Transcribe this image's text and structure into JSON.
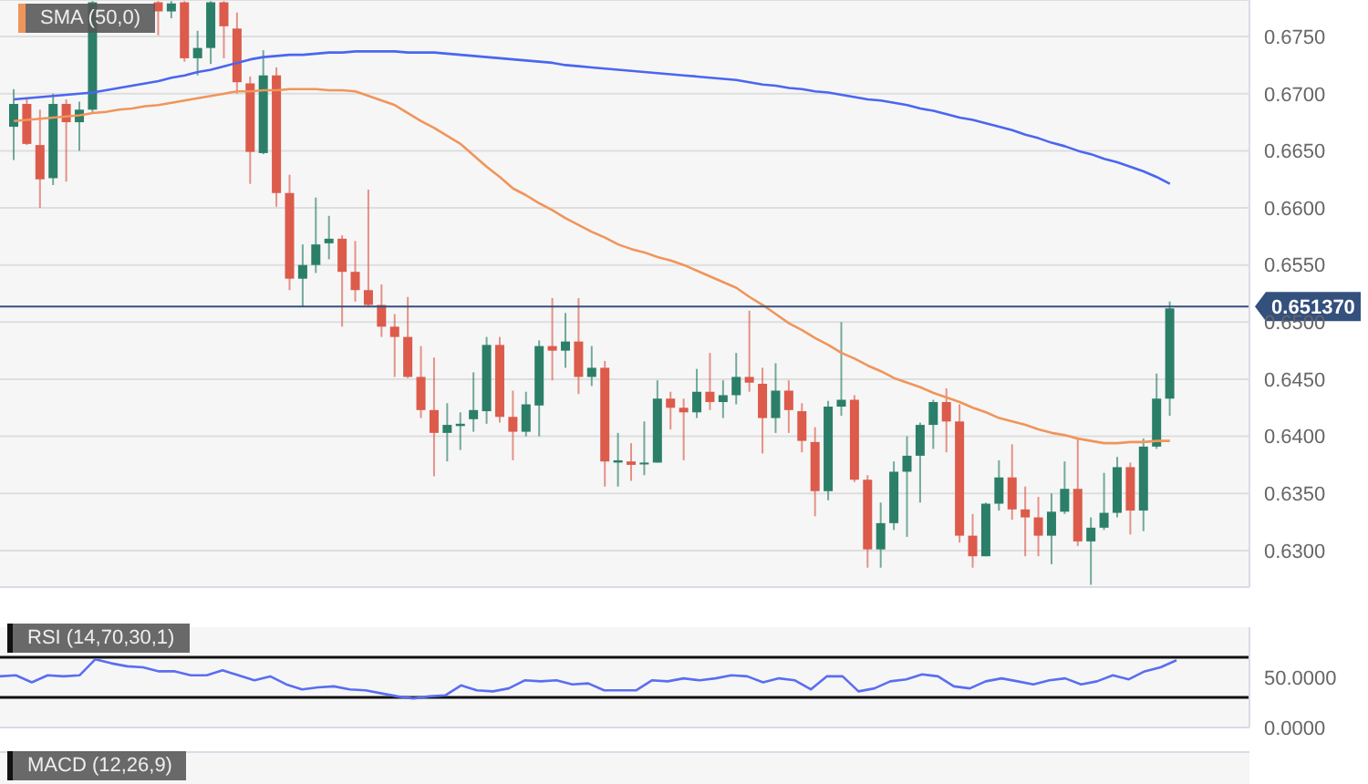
{
  "chart_data": [
    {
      "type": "candlestick",
      "categories": [
        null,
        null,
        null,
        null,
        null,
        null,
        null,
        null,
        null,
        null,
        null,
        null,
        null,
        null,
        null,
        null,
        null,
        null,
        null,
        null,
        null,
        null,
        null,
        null,
        null,
        null,
        null,
        null,
        null,
        null,
        null,
        null,
        null,
        null,
        null,
        null,
        null,
        null,
        null,
        null,
        null,
        null,
        null,
        null,
        null,
        null,
        null,
        null,
        null,
        null,
        null,
        null,
        null,
        null,
        null,
        null,
        null,
        null,
        null,
        null,
        null,
        null,
        null,
        null,
        null,
        null,
        null,
        null,
        null,
        null,
        null,
        null,
        null,
        null,
        null,
        null,
        null,
        null,
        null,
        null,
        null,
        null,
        null,
        null,
        null,
        null,
        null,
        null,
        null
      ],
      "ohlc": [
        [
          0.6671,
          0.6704,
          0.6642,
          0.6691
        ],
        [
          0.6691,
          0.6695,
          0.6655,
          0.6656
        ],
        [
          0.6655,
          0.6686,
          0.66,
          0.6625
        ],
        [
          0.6626,
          0.67,
          0.662,
          0.6691
        ],
        [
          0.6691,
          0.6695,
          0.6623,
          0.6675
        ],
        [
          0.6675,
          0.6693,
          0.665,
          0.6686
        ],
        [
          0.6686,
          0.6781,
          0.6684,
          0.678
        ],
        null,
        null,
        null,
        null,
        [
          0.678,
          0.6781,
          0.6751,
          0.6772
        ],
        [
          0.6772,
          0.6781,
          0.6766,
          0.6779
        ],
        [
          0.678,
          0.6781,
          0.6728,
          0.6731
        ],
        [
          0.6731,
          0.6755,
          0.6716,
          0.674
        ],
        [
          0.674,
          0.6781,
          0.6726,
          0.678
        ],
        [
          0.678,
          0.6781,
          0.6731,
          0.6759
        ],
        [
          0.6757,
          0.6771,
          0.67,
          0.671
        ],
        [
          0.6709,
          0.6715,
          0.6621,
          0.6649
        ],
        [
          0.6648,
          0.6738,
          0.6647,
          0.6716
        ],
        [
          0.6716,
          0.6723,
          0.6601,
          0.6613
        ],
        [
          0.6613,
          0.6629,
          0.6528,
          0.6538
        ],
        [
          0.6538,
          0.6568,
          0.6513,
          0.655
        ],
        [
          0.655,
          0.6609,
          0.6543,
          0.6568
        ],
        [
          0.6569,
          0.6593,
          0.6555,
          0.6573
        ],
        [
          0.6573,
          0.6576,
          0.6496,
          0.6544
        ],
        [
          0.6544,
          0.6571,
          0.6518,
          0.6528
        ],
        [
          0.6528,
          0.6616,
          0.6513,
          0.6515
        ],
        [
          0.6515,
          0.6533,
          0.6487,
          0.6496
        ],
        [
          0.6496,
          0.6507,
          0.6452,
          0.6487
        ],
        [
          0.6487,
          0.6522,
          0.6451,
          0.6452
        ],
        [
          0.6452,
          0.6479,
          0.6416,
          0.6423
        ],
        [
          0.6423,
          0.6469,
          0.6365,
          0.6403
        ],
        [
          0.6403,
          0.6429,
          0.6378,
          0.641
        ],
        [
          0.6409,
          0.6421,
          0.6388,
          0.6411
        ],
        [
          0.6415,
          0.6456,
          0.6404,
          0.6423
        ],
        [
          0.6422,
          0.6487,
          0.6411,
          0.648
        ],
        [
          0.648,
          0.6487,
          0.6412,
          0.6417
        ],
        [
          0.6417,
          0.644,
          0.6379,
          0.6404
        ],
        [
          0.6404,
          0.6439,
          0.64,
          0.6428
        ],
        [
          0.6427,
          0.6484,
          0.64,
          0.6479
        ],
        [
          0.6479,
          0.6521,
          0.6449,
          0.6475
        ],
        [
          0.6475,
          0.6508,
          0.646,
          0.6483
        ],
        [
          0.6483,
          0.6521,
          0.6437,
          0.6452
        ],
        [
          0.6452,
          0.6479,
          0.6444,
          0.646
        ],
        [
          0.646,
          0.6466,
          0.6356,
          0.6378
        ],
        [
          0.6377,
          0.6403,
          0.6356,
          0.6379
        ],
        [
          0.6378,
          0.6394,
          0.6361,
          0.6375
        ],
        [
          0.6376,
          0.6413,
          0.6366,
          0.6377
        ],
        [
          0.6377,
          0.6449,
          0.6377,
          0.6433
        ],
        [
          0.6433,
          0.6439,
          0.6406,
          0.6425
        ],
        [
          0.6425,
          0.6433,
          0.6379,
          0.6421
        ],
        [
          0.6421,
          0.6459,
          0.6416,
          0.6439
        ],
        [
          0.6439,
          0.6473,
          0.6423,
          0.643
        ],
        [
          0.643,
          0.6449,
          0.6416,
          0.6436
        ],
        [
          0.6436,
          0.6473,
          0.6428,
          0.6452
        ],
        [
          0.6452,
          0.651,
          0.6439,
          0.6447
        ],
        [
          0.6446,
          0.646,
          0.6385,
          0.6416
        ],
        [
          0.6416,
          0.6464,
          0.6403,
          0.644
        ],
        [
          0.644,
          0.6449,
          0.6403,
          0.6423
        ],
        [
          0.6422,
          0.6429,
          0.6386,
          0.6396
        ],
        [
          0.6395,
          0.6408,
          0.633,
          0.6352
        ],
        [
          0.6352,
          0.6431,
          0.6344,
          0.6426
        ],
        [
          0.6426,
          0.65,
          0.6418,
          0.6432
        ],
        [
          0.6432,
          0.6436,
          0.636,
          0.6362
        ],
        [
          0.6362,
          0.6366,
          0.6285,
          0.6301
        ],
        [
          0.6301,
          0.6342,
          0.6285,
          0.6324
        ],
        [
          0.6324,
          0.6378,
          0.6318,
          0.6369
        ],
        [
          0.6369,
          0.64,
          0.6312,
          0.6383
        ],
        [
          0.6383,
          0.6412,
          0.6342,
          0.641
        ],
        [
          0.641,
          0.6432,
          0.6389,
          0.643
        ],
        [
          0.643,
          0.6442,
          0.6386,
          0.6413
        ],
        [
          0.6413,
          0.6428,
          0.6307,
          0.6313
        ],
        [
          0.6313,
          0.6332,
          0.6285,
          0.6295
        ],
        [
          0.6295,
          0.6342,
          0.6295,
          0.6341
        ],
        [
          0.6341,
          0.6379,
          0.6335,
          0.6364
        ],
        [
          0.6364,
          0.6393,
          0.6327,
          0.6336
        ],
        [
          0.6336,
          0.6356,
          0.6295,
          0.6329
        ],
        [
          0.6329,
          0.6347,
          0.6295,
          0.6313
        ],
        [
          0.6313,
          0.635,
          0.6288,
          0.6334
        ],
        [
          0.6334,
          0.6378,
          0.6332,
          0.6354
        ],
        [
          0.6354,
          0.6398,
          0.6304,
          0.6308
        ],
        [
          0.6308,
          0.6329,
          0.627,
          0.632
        ],
        [
          0.632,
          0.6368,
          0.6318,
          0.6333
        ],
        [
          0.6333,
          0.6382,
          0.6329,
          0.6373
        ],
        [
          0.6373,
          0.6377,
          0.6314,
          0.6335
        ],
        [
          0.6335,
          0.6398,
          0.6317,
          0.6391
        ],
        [
          0.6391,
          0.6455,
          0.6389,
          0.6433
        ],
        [
          0.6433,
          0.6518,
          0.6418,
          0.6512
        ]
      ],
      "colors": [
        "#2b7f68",
        "#dc5b4b",
        "#dc5b4b",
        "#2b7f68",
        "#dc5b4b",
        "#2b7f68",
        "#2b7f68",
        null,
        null,
        null,
        null,
        "#dc5b4b",
        "#2b7f68",
        "#dc5b4b",
        "#2b7f68",
        "#2b7f68",
        "#dc5b4b",
        "#dc5b4b",
        "#dc5b4b",
        "#2b7f68",
        "#dc5b4b",
        "#dc5b4b",
        "#2b7f68",
        "#2b7f68",
        "#2b7f68",
        "#dc5b4b",
        "#dc5b4b",
        "#dc5b4b",
        "#dc5b4b",
        "#dc5b4b",
        "#dc5b4b",
        "#dc5b4b",
        "#dc5b4b",
        "#2b7f68",
        "#2b7f68",
        "#2b7f68",
        "#2b7f68",
        "#dc5b4b",
        "#dc5b4b",
        "#2b7f68",
        "#2b7f68",
        "#dc5b4b",
        "#2b7f68",
        "#dc5b4b",
        "#2b7f68",
        "#dc5b4b",
        "#2b7f68",
        "#dc5b4b",
        "#2b7f68",
        "#2b7f68",
        "#dc5b4b",
        "#dc5b4b",
        "#2b7f68",
        "#dc5b4b",
        "#2b7f68",
        "#2b7f68",
        "#dc5b4b",
        "#dc5b4b",
        "#2b7f68",
        "#dc5b4b",
        "#dc5b4b",
        "#dc5b4b",
        "#2b7f68",
        "#2b7f68",
        "#dc5b4b",
        "#dc5b4b",
        "#2b7f68",
        "#2b7f68",
        "#2b7f68",
        "#2b7f68",
        "#2b7f68",
        "#dc5b4b",
        "#dc5b4b",
        "#dc5b4b",
        "#2b7f68",
        "#2b7f68",
        "#dc5b4b",
        "#dc5b4b",
        "#dc5b4b",
        "#2b7f68",
        "#2b7f68",
        "#dc5b4b",
        "#2b7f68",
        "#2b7f68",
        "#2b7f68",
        "#dc5b4b",
        "#2b7f68",
        "#2b7f68",
        "#2b7f68"
      ],
      "series": [
        {
          "type": "line",
          "name": "SMA (50,0)",
          "color": "#f0955a",
          "values": [
            0.6676,
            0.6677,
            0.6678,
            0.6679,
            0.668,
            0.6681,
            0.6683,
            0.6684,
            0.6686,
            0.6687,
            0.6689,
            0.669,
            0.6692,
            0.6694,
            0.6696,
            0.6698,
            0.67,
            0.6702,
            0.6702,
            0.6703,
            0.6703,
            0.6704,
            0.6704,
            0.6704,
            0.6703,
            0.6703,
            0.6702,
            0.6698,
            0.6694,
            0.669,
            0.6683,
            0.6676,
            0.667,
            0.6663,
            0.6656,
            0.6646,
            0.6636,
            0.6627,
            0.6617,
            0.6611,
            0.6604,
            0.6598,
            0.6591,
            0.6585,
            0.6579,
            0.6574,
            0.6568,
            0.6564,
            0.6561,
            0.6557,
            0.6554,
            0.655,
            0.6545,
            0.654,
            0.6535,
            0.653,
            0.6522,
            0.6515,
            0.6507,
            0.6499,
            0.6493,
            0.6486,
            0.648,
            0.6473,
            0.6468,
            0.6462,
            0.6457,
            0.6451,
            0.6447,
            0.6443,
            0.6438,
            0.6434,
            0.643,
            0.6425,
            0.6421,
            0.6416,
            0.6413,
            0.641,
            0.6406,
            0.6403,
            0.6401,
            0.6398,
            0.6396,
            0.6394,
            0.6394,
            0.6395,
            0.6395,
            0.6396,
            0.6396
          ]
        },
        {
          "type": "line",
          "color": "#4a66f0",
          "values": [
            0.6695,
            0.6696,
            0.6697,
            0.6698,
            0.6699,
            0.67,
            0.6701,
            0.6703,
            0.6705,
            0.6707,
            0.6709,
            0.6711,
            0.6714,
            0.6716,
            0.6719,
            0.6721,
            0.6724,
            0.6727,
            0.673,
            0.6732,
            0.6733,
            0.6734,
            0.6734,
            0.6735,
            0.6736,
            0.6736,
            0.6737,
            0.6737,
            0.6737,
            0.6737,
            0.6736,
            0.6736,
            0.6736,
            0.6735,
            0.6734,
            0.6733,
            0.6732,
            0.6731,
            0.673,
            0.6729,
            0.6728,
            0.6727,
            0.6725,
            0.6724,
            0.6723,
            0.6722,
            0.6721,
            0.672,
            0.6719,
            0.6718,
            0.6717,
            0.6716,
            0.6715,
            0.6714,
            0.6713,
            0.6712,
            0.671,
            0.6708,
            0.6707,
            0.6705,
            0.6704,
            0.6702,
            0.6701,
            0.6699,
            0.6697,
            0.6695,
            0.6694,
            0.6692,
            0.669,
            0.6687,
            0.6685,
            0.6682,
            0.6679,
            0.6677,
            0.6674,
            0.6671,
            0.6668,
            0.6664,
            0.6661,
            0.6657,
            0.6654,
            0.665,
            0.6647,
            0.6643,
            0.664,
            0.6636,
            0.6632,
            0.6627,
            0.6621
          ]
        }
      ],
      "ylim": [
        0.6268,
        0.6782
      ],
      "yticks": [
        {
          "value": 0.63,
          "label": "0.6300"
        },
        {
          "value": 0.635,
          "label": "0.6350"
        },
        {
          "value": 0.64,
          "label": "0.6400"
        },
        {
          "value": 0.645,
          "label": "0.6450"
        },
        {
          "value": 0.65,
          "label": "0.6500"
        },
        {
          "value": 0.655,
          "label": "0.6550"
        },
        {
          "value": 0.66,
          "label": "0.6600"
        },
        {
          "value": 0.665,
          "label": "0.6650"
        },
        {
          "value": 0.67,
          "label": "0.6700"
        },
        {
          "value": 0.675,
          "label": "0.6750"
        }
      ],
      "ref_lines": [
        {
          "axis": "y",
          "value": 0.65137,
          "label": "0.651370",
          "color": "#34507d"
        }
      ],
      "grid": "y",
      "legend": "top left",
      "tick_labels": "y"
    },
    {
      "type": "line",
      "title": "RSI (14,70,30,1)",
      "categories": [
        null,
        null,
        null,
        null,
        null,
        null,
        null,
        null,
        null,
        null,
        null,
        null,
        null,
        null,
        null,
        null,
        null,
        null,
        null,
        null,
        null,
        null,
        null,
        null,
        null,
        null,
        null,
        null,
        null,
        null,
        null,
        null,
        null,
        null,
        null,
        null,
        null,
        null,
        null,
        null,
        null,
        null,
        null,
        null,
        null,
        null,
        null,
        null,
        null,
        null,
        null,
        null,
        null,
        null,
        null,
        null,
        null,
        null,
        null,
        null,
        null,
        null,
        null,
        null,
        null,
        null,
        null,
        null,
        null,
        null,
        null,
        null,
        null,
        null,
        null
      ],
      "series": [
        {
          "color": "#5a6ef0",
          "values": [
            51,
            52,
            45,
            52,
            51,
            52,
            68,
            64,
            61,
            60,
            56,
            56,
            52,
            52,
            57,
            52,
            47,
            51,
            43,
            38,
            40,
            41,
            38,
            37,
            34,
            31,
            29,
            31,
            32,
            42,
            37,
            36,
            39,
            47,
            46,
            47,
            43,
            44,
            37,
            37,
            37,
            47,
            46,
            49,
            47,
            49,
            52,
            51,
            45,
            49,
            47,
            38,
            51,
            51,
            36,
            39,
            46,
            48,
            53,
            51,
            41,
            39,
            46,
            49,
            46,
            43,
            47,
            49,
            43,
            46,
            52,
            48,
            56,
            60,
            67
          ]
        }
      ],
      "ylim": [
        0,
        100
      ],
      "yticks": [
        {
          "value": 0,
          "label": "0.0000"
        },
        {
          "value": 50,
          "label": "50.0000"
        }
      ],
      "ref_lines": [
        {
          "axis": "y",
          "value": 70,
          "color": "#111111"
        },
        {
          "axis": "y",
          "value": 30,
          "color": "#111111"
        }
      ],
      "tick_labels": "y"
    },
    {
      "type": "other",
      "title": "MACD (12,26,9)"
    }
  ]
}
